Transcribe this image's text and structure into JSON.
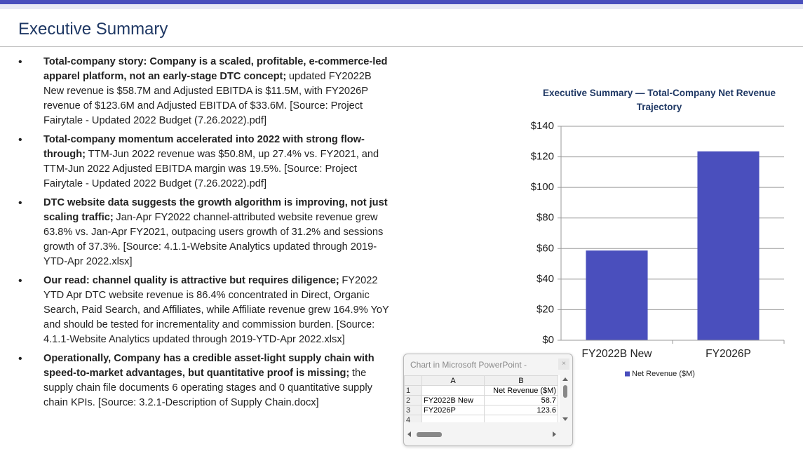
{
  "header": {
    "title": "Executive Summary"
  },
  "bullets": [
    {
      "bold": "Total-company story: Company is a scaled, profitable, e-commerce-led apparel platform, not an early-stage DTC concept;",
      "text": "updated FY2022B New revenue is $58.7M and Adjusted EBITDA is $11.5M, with FY2026P revenue of $123.6M and Adjusted EBITDA of $33.6M. [Source: Project Fairytale - Updated 2022 Budget (7.26.2022).pdf]"
    },
    {
      "bold": "Total-company momentum accelerated into 2022 with strong flow-through;",
      "text": "TTM-Jun 2022 revenue was $50.8M, up 27.4% vs. FY2021, and TTM-Jun 2022 Adjusted EBITDA margin was 19.5%. [Source: Project Fairytale - Updated 2022 Budget (7.26.2022).pdf]"
    },
    {
      "bold": "DTC website data suggests the growth algorithm is improving, not just scaling traffic;",
      "text": "Jan-Apr FY2022 channel-attributed website revenue grew 63.8% vs. Jan-Apr FY2021, outpacing users growth of 31.2% and sessions growth of 37.3%. [Source: 4.1.1-Website Analytics updated through 2019-YTD-Apr 2022.xlsx]"
    },
    {
      "bold": "Our read: channel quality is attractive but requires diligence;",
      "text": "FY2022 YTD Apr DTC website revenue is 86.4% concentrated in Direct, Organic Search, Paid Search, and Affiliates, while Affiliate revenue grew 164.9% YoY and should be tested for incrementality and commission burden. [Source: 4.1.1-Website Analytics updated through 2019-YTD-Apr 2022.xlsx]"
    },
    {
      "bold": "Operationally, Company has a credible asset-light supply chain with speed-to-market advantages, but quantitative proof is missing;",
      "text": "the supply chain file documents 6 operating stages and 0 quantitative supply chain KPIs. [Source: 3.2.1-Description of Supply Chain.docx]"
    }
  ],
  "chart_data": {
    "type": "bar",
    "title": "Executive Summary — Total-Company Net Revenue Trajectory",
    "categories": [
      "FY2022B New",
      "FY2026P"
    ],
    "series": [
      {
        "name": "Net Revenue ($M)",
        "color": "#4a4fbd",
        "values": [
          58.7,
          123.6
        ]
      }
    ],
    "ylim": [
      0,
      140
    ],
    "yticks": [
      {
        "value": 0,
        "label": "$0"
      },
      {
        "value": 20,
        "label": "$20"
      },
      {
        "value": 40,
        "label": "$40"
      },
      {
        "value": 60,
        "label": "$60"
      },
      {
        "value": 80,
        "label": "$80"
      },
      {
        "value": 100,
        "label": "$100"
      },
      {
        "value": 120,
        "label": "$120"
      },
      {
        "value": 140,
        "label": "$140"
      }
    ],
    "grid": true,
    "legend": "bottom"
  },
  "datasheet": {
    "title": "Chart in Microsoft PowerPoint -",
    "columns": [
      "A",
      "B"
    ],
    "row_numbers": [
      1,
      2,
      3,
      4
    ]
  }
}
